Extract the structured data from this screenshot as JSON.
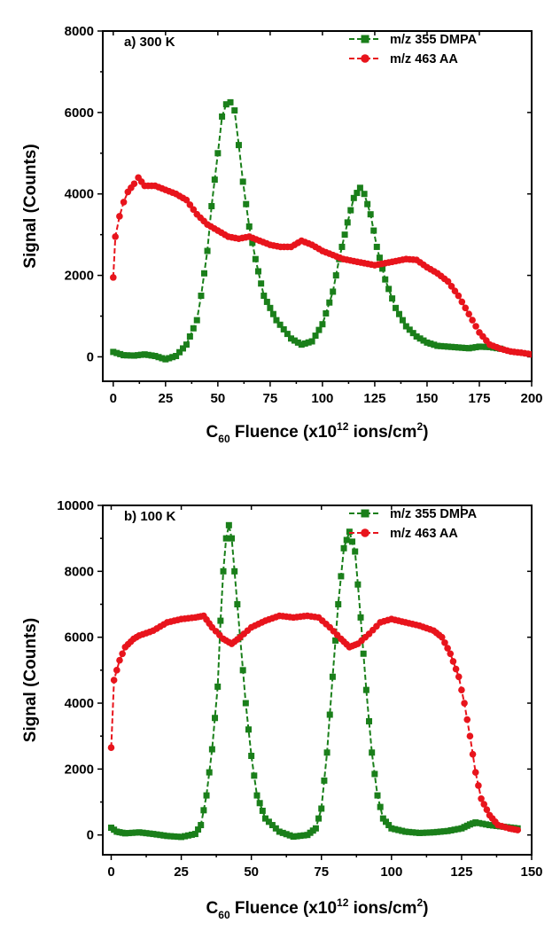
{
  "colors": {
    "green": "#1a7f1a",
    "red": "#e8141c"
  },
  "chart_data": [
    {
      "type": "line",
      "panel_title": "a) 300 K",
      "xlabel_parts": [
        "C",
        "60",
        " Fluence (x10",
        "12",
        " ions/cm",
        "2",
        ")"
      ],
      "ylabel": "Signal (Counts)",
      "xlim": [
        -5,
        200
      ],
      "ylim": [
        -600,
        8000
      ],
      "xticks": [
        0,
        25,
        50,
        75,
        100,
        125,
        150,
        175,
        200
      ],
      "yticks": [
        0,
        2000,
        4000,
        6000,
        8000
      ],
      "series": [
        {
          "name": "m/z 355 DMPA",
          "color": "#1a7f1a",
          "marker": "square",
          "points": [
            [
              0,
              120
            ],
            [
              5,
              40
            ],
            [
              10,
              30
            ],
            [
              15,
              60
            ],
            [
              20,
              20
            ],
            [
              25,
              -60
            ],
            [
              30,
              20
            ],
            [
              35,
              300
            ],
            [
              40,
              900
            ],
            [
              42,
              1500
            ],
            [
              45,
              2600
            ],
            [
              47,
              3700
            ],
            [
              50,
              5000
            ],
            [
              52,
              5900
            ],
            [
              54,
              6200
            ],
            [
              56,
              6250
            ],
            [
              58,
              6050
            ],
            [
              60,
              5200
            ],
            [
              62,
              4300
            ],
            [
              65,
              3200
            ],
            [
              68,
              2400
            ],
            [
              72,
              1500
            ],
            [
              78,
              900
            ],
            [
              85,
              450
            ],
            [
              90,
              300
            ],
            [
              95,
              380
            ],
            [
              100,
              800
            ],
            [
              105,
              1600
            ],
            [
              108,
              2400
            ],
            [
              112,
              3300
            ],
            [
              115,
              3900
            ],
            [
              118,
              4150
            ],
            [
              120,
              4000
            ],
            [
              123,
              3500
            ],
            [
              126,
              2700
            ],
            [
              130,
              1900
            ],
            [
              135,
              1200
            ],
            [
              140,
              750
            ],
            [
              145,
              500
            ],
            [
              150,
              350
            ],
            [
              155,
              270
            ],
            [
              160,
              250
            ],
            [
              165,
              230
            ],
            [
              170,
              210
            ],
            [
              175,
              250
            ],
            [
              180,
              240
            ],
            [
              185,
              200
            ]
          ]
        },
        {
          "name": "m/z 463 AA",
          "color": "#e8141c",
          "marker": "circle",
          "points": [
            [
              0,
              1950
            ],
            [
              1,
              2950
            ],
            [
              3,
              3450
            ],
            [
              5,
              3800
            ],
            [
              7,
              4050
            ],
            [
              10,
              4250
            ],
            [
              12,
              4400
            ],
            [
              15,
              4200
            ],
            [
              20,
              4200
            ],
            [
              25,
              4100
            ],
            [
              30,
              4000
            ],
            [
              35,
              3850
            ],
            [
              40,
              3500
            ],
            [
              45,
              3250
            ],
            [
              50,
              3100
            ],
            [
              55,
              2950
            ],
            [
              60,
              2900
            ],
            [
              65,
              2950
            ],
            [
              70,
              2850
            ],
            [
              75,
              2750
            ],
            [
              80,
              2700
            ],
            [
              85,
              2700
            ],
            [
              90,
              2850
            ],
            [
              95,
              2750
            ],
            [
              100,
              2600
            ],
            [
              105,
              2500
            ],
            [
              110,
              2400
            ],
            [
              115,
              2350
            ],
            [
              120,
              2300
            ],
            [
              125,
              2250
            ],
            [
              130,
              2300
            ],
            [
              135,
              2350
            ],
            [
              140,
              2400
            ],
            [
              145,
              2380
            ],
            [
              150,
              2200
            ],
            [
              155,
              2050
            ],
            [
              160,
              1850
            ],
            [
              165,
              1500
            ],
            [
              170,
              1050
            ],
            [
              175,
              600
            ],
            [
              180,
              300
            ],
            [
              185,
              200
            ],
            [
              190,
              130
            ],
            [
              195,
              100
            ],
            [
              200,
              60
            ]
          ]
        }
      ]
    },
    {
      "type": "line",
      "panel_title": "b) 100 K",
      "xlabel_parts": [
        "C",
        "60",
        " Fluence (x10",
        "12",
        " ions/cm",
        "2",
        ")"
      ],
      "ylabel": "Signal (Counts)",
      "xlim": [
        -3,
        150
      ],
      "ylim": [
        -600,
        10000
      ],
      "xticks": [
        0,
        25,
        50,
        75,
        100,
        125,
        150
      ],
      "yticks": [
        0,
        2000,
        4000,
        6000,
        8000,
        10000
      ],
      "series": [
        {
          "name": "m/z 355 DMPA",
          "color": "#1a7f1a",
          "marker": "square",
          "points": [
            [
              0,
              220
            ],
            [
              2,
              100
            ],
            [
              5,
              50
            ],
            [
              10,
              80
            ],
            [
              15,
              30
            ],
            [
              20,
              -30
            ],
            [
              25,
              -60
            ],
            [
              30,
              30
            ],
            [
              32,
              300
            ],
            [
              34,
              1200
            ],
            [
              36,
              2600
            ],
            [
              38,
              4500
            ],
            [
              39,
              6500
            ],
            [
              40,
              8000
            ],
            [
              41,
              9000
            ],
            [
              42,
              9400
            ],
            [
              43,
              9000
            ],
            [
              44,
              8000
            ],
            [
              46,
              6000
            ],
            [
              48,
              4000
            ],
            [
              50,
              2400
            ],
            [
              52,
              1200
            ],
            [
              55,
              500
            ],
            [
              60,
              100
            ],
            [
              65,
              -50
            ],
            [
              70,
              0
            ],
            [
              73,
              200
            ],
            [
              75,
              800
            ],
            [
              77,
              2500
            ],
            [
              79,
              4800
            ],
            [
              81,
              7000
            ],
            [
              83,
              8700
            ],
            [
              85,
              9200
            ],
            [
              87,
              8600
            ],
            [
              89,
              6600
            ],
            [
              91,
              4400
            ],
            [
              93,
              2500
            ],
            [
              95,
              1200
            ],
            [
              97,
              500
            ],
            [
              100,
              200
            ],
            [
              105,
              100
            ],
            [
              110,
              60
            ],
            [
              115,
              80
            ],
            [
              120,
              120
            ],
            [
              125,
              200
            ],
            [
              128,
              320
            ],
            [
              130,
              380
            ],
            [
              135,
              300
            ],
            [
              140,
              250
            ],
            [
              145,
              200
            ]
          ]
        },
        {
          "name": "m/z 463 AA",
          "color": "#e8141c",
          "marker": "circle",
          "points": [
            [
              0,
              2650
            ],
            [
              1,
              4700
            ],
            [
              3,
              5300
            ],
            [
              5,
              5700
            ],
            [
              8,
              5950
            ],
            [
              10,
              6050
            ],
            [
              15,
              6200
            ],
            [
              20,
              6450
            ],
            [
              25,
              6550
            ],
            [
              30,
              6600
            ],
            [
              33,
              6650
            ],
            [
              36,
              6300
            ],
            [
              40,
              5950
            ],
            [
              43,
              5800
            ],
            [
              46,
              6000
            ],
            [
              50,
              6300
            ],
            [
              55,
              6500
            ],
            [
              60,
              6650
            ],
            [
              65,
              6600
            ],
            [
              70,
              6650
            ],
            [
              74,
              6600
            ],
            [
              78,
              6300
            ],
            [
              82,
              5950
            ],
            [
              85,
              5700
            ],
            [
              88,
              5800
            ],
            [
              92,
              6100
            ],
            [
              96,
              6450
            ],
            [
              100,
              6550
            ],
            [
              105,
              6450
            ],
            [
              110,
              6350
            ],
            [
              115,
              6200
            ],
            [
              118,
              6000
            ],
            [
              121,
              5500
            ],
            [
              124,
              4800
            ],
            [
              126,
              4000
            ],
            [
              128,
              3000
            ],
            [
              130,
              1900
            ],
            [
              132,
              1100
            ],
            [
              135,
              600
            ],
            [
              138,
              300
            ],
            [
              142,
              200
            ],
            [
              145,
              150
            ]
          ]
        }
      ]
    }
  ]
}
